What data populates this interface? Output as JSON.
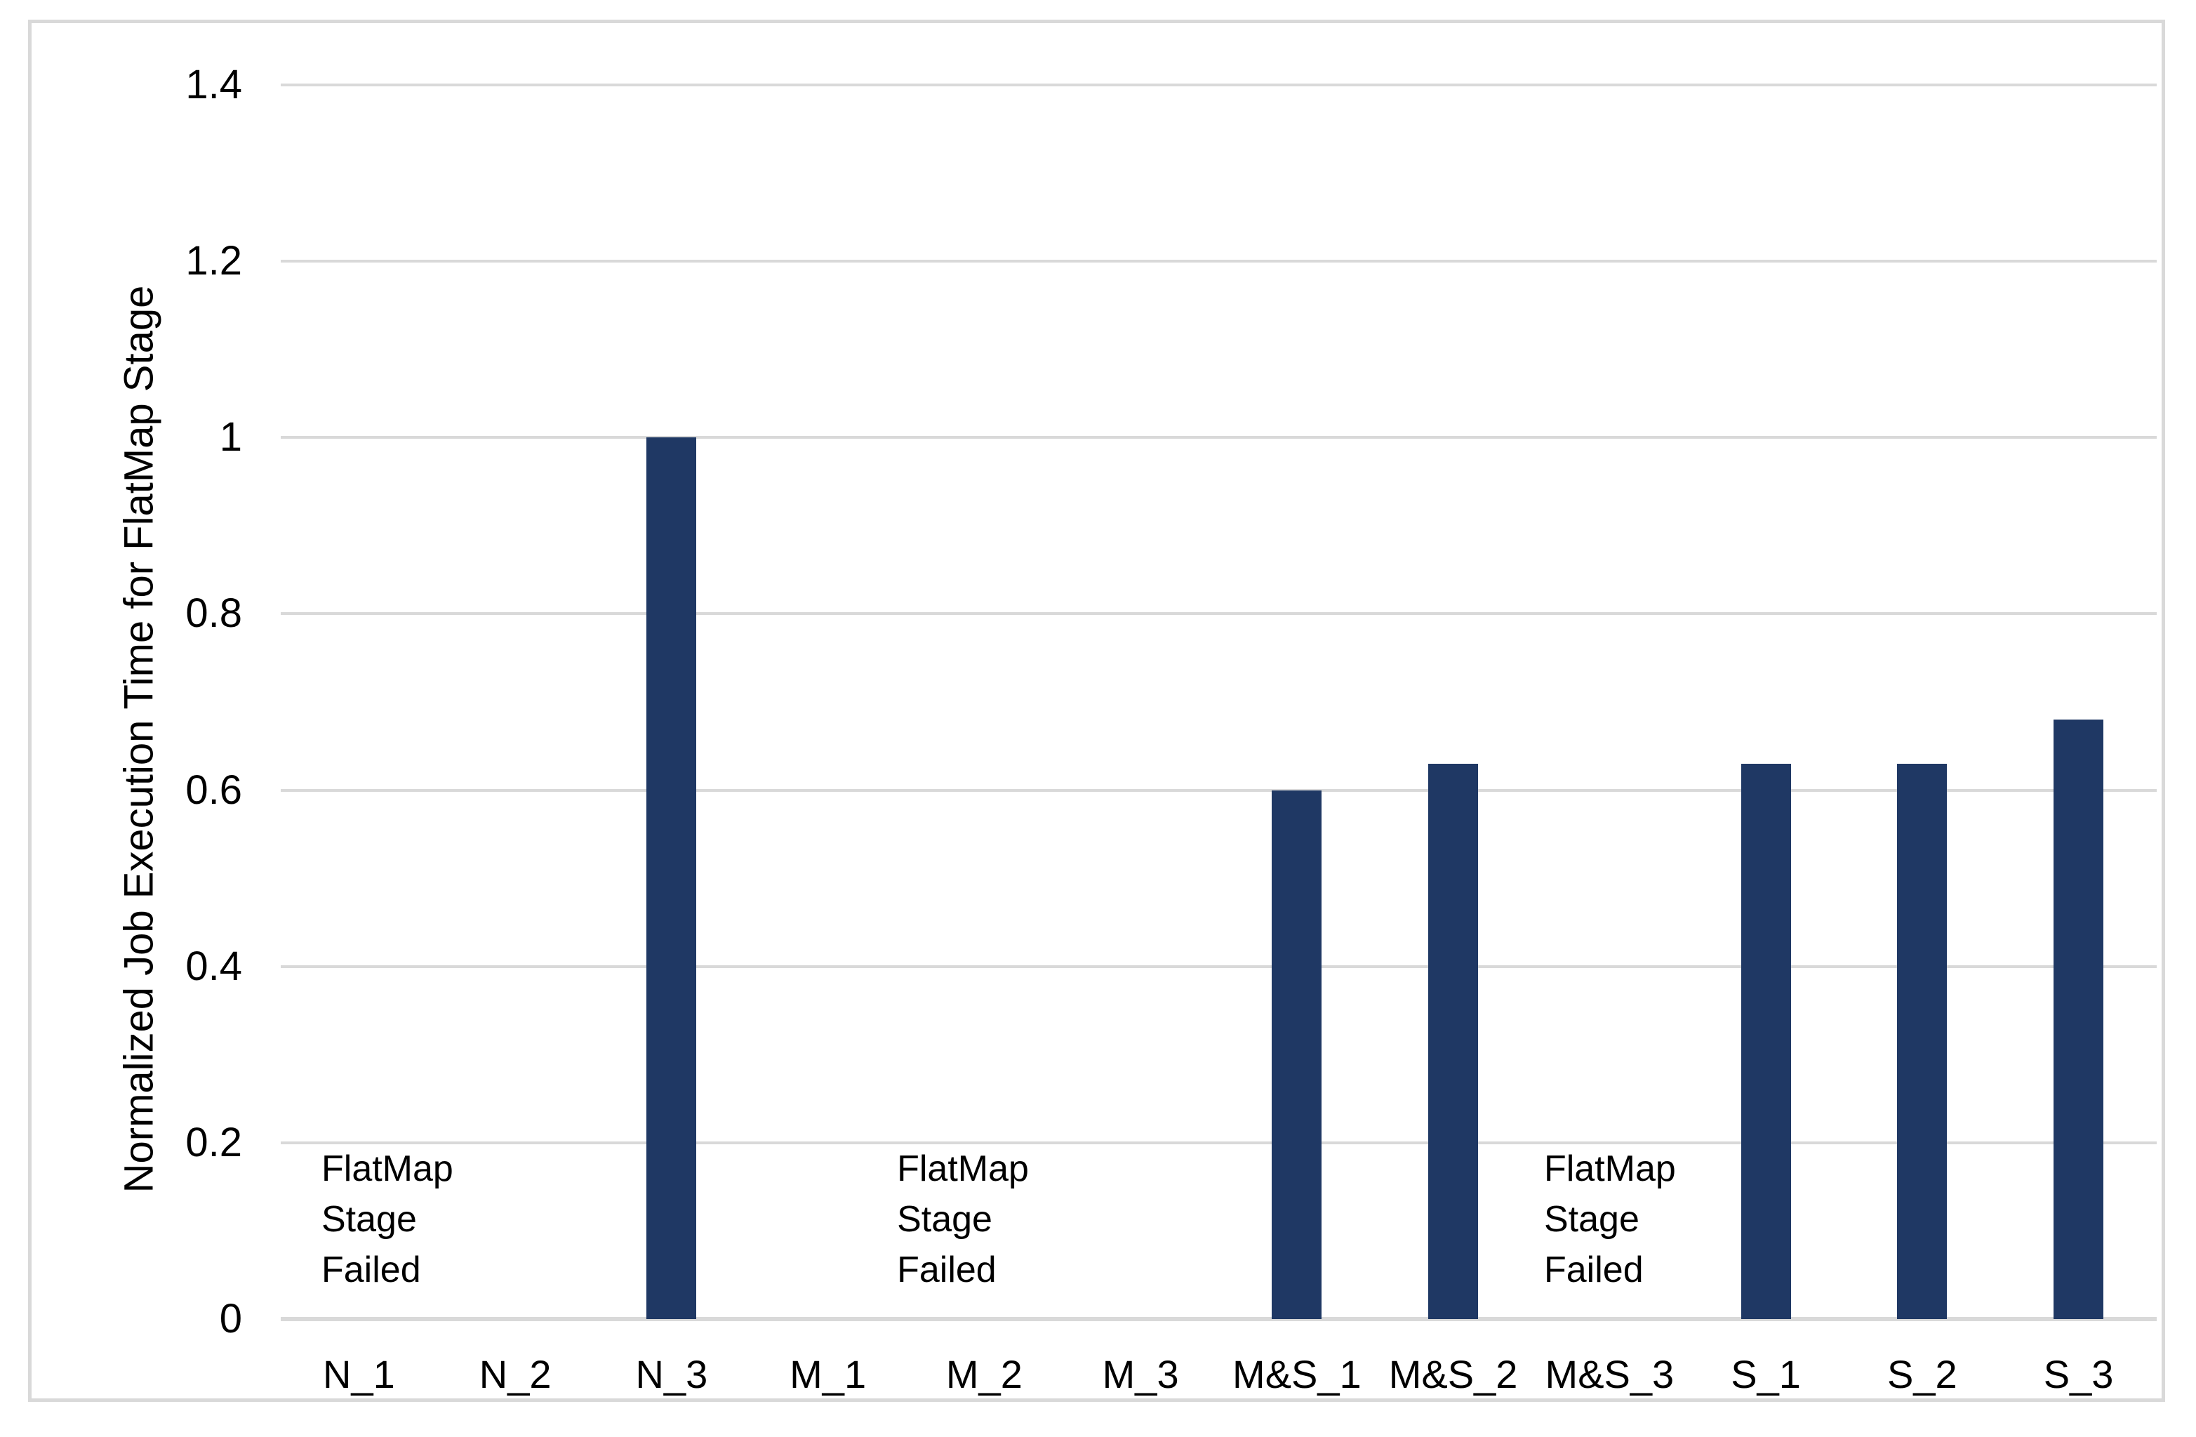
{
  "chart_data": {
    "type": "bar",
    "title": "",
    "xlabel": "",
    "ylabel": "Normalized Job Execution Time for FlatMap Stage",
    "categories": [
      "N_1",
      "N_2",
      "N_3",
      "M_1",
      "M_2",
      "M_3",
      "M&S_1",
      "M&S_2",
      "M&S_3",
      "S_1",
      "S_2",
      "S_3"
    ],
    "values": [
      null,
      null,
      1.0,
      null,
      null,
      null,
      0.6,
      0.63,
      null,
      0.63,
      0.63,
      0.68
    ],
    "ylim": [
      0,
      1.4
    ],
    "yticks": [
      0,
      0.2,
      0.4,
      0.6,
      0.8,
      1,
      1.2,
      1.4
    ],
    "ytick_labels": [
      "0",
      "0.2",
      "0.4",
      "0.6",
      "0.8",
      "1",
      "1.2",
      "1.4"
    ],
    "grid": true,
    "legend": false,
    "bar_color": "#1f3864",
    "gridline_color": "#d9d9d9",
    "annotations": [
      {
        "lines": [
          "FlatMap",
          "Stage",
          "Failed"
        ],
        "x_frac": 0.0217,
        "top_value": 0.199
      },
      {
        "lines": [
          "FlatMap",
          "Stage",
          "Failed"
        ],
        "x_frac": 0.3285,
        "top_value": 0.199
      },
      {
        "lines": [
          "FlatMap",
          "Stage",
          "Failed"
        ],
        "x_frac": 0.6734,
        "top_value": 0.199
      }
    ]
  }
}
